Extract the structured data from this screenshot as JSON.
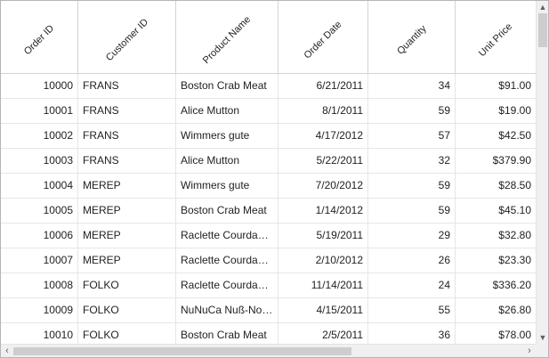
{
  "grid": {
    "columns": [
      "Order ID",
      "Customer ID",
      "Product Name",
      "Order Date",
      "Quantity",
      "Unit Price"
    ],
    "rows": [
      [
        "10000",
        "FRANS",
        "Boston Crab Meat",
        "6/21/2011",
        "34",
        "$91.00"
      ],
      [
        "10001",
        "FRANS",
        "Alice Mutton",
        "8/1/2011",
        "59",
        "$19.00"
      ],
      [
        "10002",
        "FRANS",
        "Wimmers gute",
        "4/17/2012",
        "57",
        "$42.50"
      ],
      [
        "10003",
        "FRANS",
        "Alice Mutton",
        "5/22/2011",
        "32",
        "$379.90"
      ],
      [
        "10004",
        "MEREP",
        "Wimmers gute",
        "7/20/2012",
        "59",
        "$28.50"
      ],
      [
        "10005",
        "MEREP",
        "Boston Crab Meat",
        "1/14/2012",
        "59",
        "$45.10"
      ],
      [
        "10006",
        "MEREP",
        "Raclette Courdavault",
        "5/19/2011",
        "29",
        "$32.80"
      ],
      [
        "10007",
        "MEREP",
        "Raclette Courdavault",
        "2/10/2012",
        "26",
        "$23.30"
      ],
      [
        "10008",
        "FOLKO",
        "Raclette Courdavault",
        "11/14/2011",
        "24",
        "$336.20"
      ],
      [
        "10009",
        "FOLKO",
        "NuNuCa Nuß-Nougat-Creme",
        "4/15/2011",
        "55",
        "$26.80"
      ],
      [
        "10010",
        "FOLKO",
        "Boston Crab Meat",
        "2/5/2011",
        "36",
        "$78.00"
      ]
    ]
  },
  "scrollbars": {
    "up_icon": "chevron-up-icon",
    "down_icon": "chevron-down-icon",
    "left_icon": "chevron-left-icon",
    "right_icon": "chevron-right-icon"
  }
}
